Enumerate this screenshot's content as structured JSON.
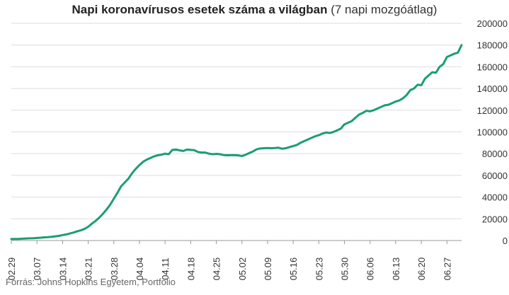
{
  "chart_data": {
    "type": "line",
    "title": "Napi koronavírusos esetek száma a világban",
    "subtitle": "(7 napi mozgóátlag)",
    "source": "Forrás: Johns Hopkins Egyetem, Portfolio",
    "ylim": [
      0,
      200000
    ],
    "yticks": [
      0,
      20000,
      40000,
      60000,
      80000,
      100000,
      120000,
      140000,
      160000,
      180000,
      200000
    ],
    "xticks": [
      "02.29",
      "03.07",
      "03.14",
      "03.21",
      "03.28",
      "04.04",
      "04.11",
      "04.18",
      "04.25",
      "05.02",
      "05.09",
      "05.16",
      "05.23",
      "05.30",
      "06.06",
      "06.13",
      "06.20",
      "06.27"
    ],
    "grid": true,
    "line_color": "#1a9e73",
    "series": [
      {
        "x": [
          "02.29",
          "03.01",
          "03.02",
          "03.03",
          "03.04",
          "03.05",
          "03.06",
          "03.07",
          "03.08",
          "03.09",
          "03.10",
          "03.11",
          "03.12",
          "03.13",
          "03.14",
          "03.15",
          "03.16",
          "03.17",
          "03.18",
          "03.19",
          "03.20",
          "03.21",
          "03.22",
          "03.23",
          "03.24",
          "03.25",
          "03.26",
          "03.27",
          "03.28",
          "03.29",
          "03.30",
          "03.31",
          "04.01",
          "04.02",
          "04.03",
          "04.04",
          "04.05",
          "04.06",
          "04.07",
          "04.08",
          "04.09",
          "04.10",
          "04.11",
          "04.12",
          "04.13",
          "04.14",
          "04.15",
          "04.16",
          "04.17",
          "04.18",
          "04.19",
          "04.20",
          "04.21",
          "04.22",
          "04.23",
          "04.24",
          "04.25",
          "04.26",
          "04.27",
          "04.28",
          "04.29",
          "04.30",
          "05.01",
          "05.02",
          "05.03",
          "05.04",
          "05.05",
          "05.06",
          "05.07",
          "05.08",
          "05.09",
          "05.10",
          "05.11",
          "05.12",
          "05.13",
          "05.14",
          "05.15",
          "05.16",
          "05.17",
          "05.18",
          "05.19",
          "05.20",
          "05.21",
          "05.22",
          "05.23",
          "05.24",
          "05.25",
          "05.26",
          "05.27",
          "05.28",
          "05.29",
          "05.30",
          "05.31",
          "06.01",
          "06.02",
          "06.03",
          "06.04",
          "06.05",
          "06.06",
          "06.07",
          "06.08",
          "06.09",
          "06.10",
          "06.11",
          "06.12",
          "06.13",
          "06.14",
          "06.15",
          "06.16",
          "06.17",
          "06.18",
          "06.19",
          "06.20",
          "06.21",
          "06.22",
          "06.23",
          "06.24",
          "06.25",
          "06.26",
          "06.27",
          "06.28",
          "06.29",
          "06.30",
          "07.01"
        ],
        "values": [
          1400,
          1500,
          1500,
          1700,
          1900,
          2000,
          2100,
          2400,
          2600,
          2900,
          3100,
          3400,
          3800,
          4300,
          5000,
          5600,
          6500,
          7400,
          8500,
          9400,
          10700,
          12700,
          15500,
          18000,
          21000,
          24500,
          28500,
          33000,
          38500,
          44000,
          50000,
          53500,
          57000,
          62000,
          66000,
          69500,
          72500,
          74500,
          76000,
          77500,
          78500,
          79000,
          80000,
          79500,
          83500,
          83800,
          83000,
          82500,
          83800,
          83500,
          83200,
          81500,
          81000,
          81000,
          80000,
          79500,
          79800,
          79500,
          78700,
          78500,
          78600,
          78600,
          78400,
          77800,
          79000,
          80500,
          82000,
          84000,
          84800,
          85000,
          85200,
          85000,
          85200,
          85500,
          84500,
          85000,
          86000,
          87000,
          88000,
          90000,
          91500,
          93000,
          94500,
          96000,
          97000,
          98500,
          99500,
          99000,
          100000,
          101500,
          103000,
          107000,
          108500,
          110000,
          113000,
          116000,
          117500,
          119500,
          119000,
          120000,
          121500,
          123000,
          124500,
          125000,
          126500,
          128000,
          129000,
          131000,
          134000,
          138500,
          140000,
          143500,
          143000,
          149000,
          152000,
          155000,
          154500,
          160000,
          162500,
          169000,
          170500,
          172000,
          173000,
          180000
        ]
      }
    ]
  }
}
